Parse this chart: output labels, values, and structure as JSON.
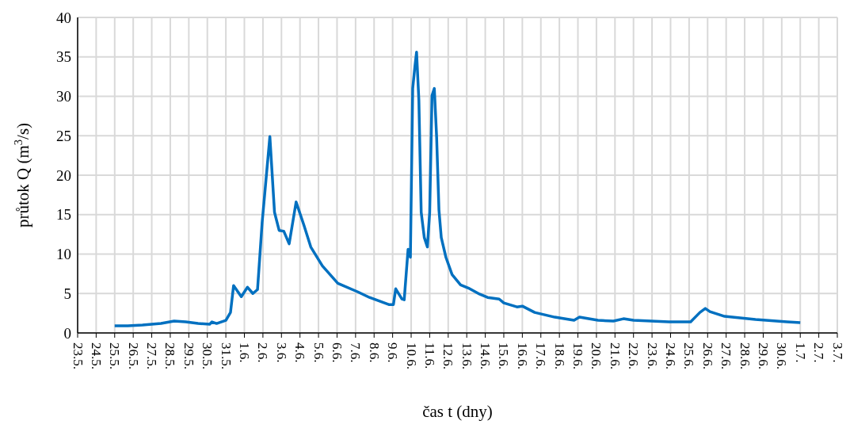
{
  "chart_data": {
    "type": "line",
    "xlabel": "čas t (dny)",
    "ylabel": "průtok Q (m$^{3}$/s)",
    "x": [
      "--05-25T00:00",
      "--05-25T17:00",
      "--05-26T12:00",
      "--05-27T12:00",
      "--05-28T05:00",
      "--05-28T20:00",
      "--05-29T12:00",
      "--05-30T03:00",
      "--05-30T06:00",
      "--05-30T12:00",
      "--05-31T00:00",
      "--05-31T06:00",
      "--05-31T10:00",
      "--05-31T20:00",
      "--06-01T04:00",
      "--06-01T11:00",
      "--06-01T17:00",
      "--06-01T23:00",
      "--06-02T09:00",
      "--06-02T15:00",
      "--06-02T21:00",
      "--06-03T03:00",
      "--06-03T10:00",
      "--06-03T19:00",
      "--06-04T05:00",
      "--06-04T14:00",
      "--06-05T05:00",
      "--06-06T01:00",
      "--06-07T03:00",
      "--06-07T18:00",
      "--06-08T19:00",
      "--06-09T01:00",
      "--06-09T04:00",
      "--06-09T12:00",
      "--06-09T15:00",
      "--06-09T20:00",
      "--06-09T23:00",
      "--06-10T02:00",
      "--06-10T05:00",
      "--06-10T07:00",
      "--06-10T10:00",
      "--06-10T13:00",
      "--06-10T17:00",
      "--06-10T21:00",
      "--06-11T00:00",
      "--06-11T03:00",
      "--06-11T06:00",
      "--06-11T09:00",
      "--06-11T12:00",
      "--06-11T15:00",
      "--06-11T21:00",
      "--06-12T05:00",
      "--06-12T16:00",
      "--06-13T02:00",
      "--06-13T17:00",
      "--06-14T03:00",
      "--06-14T18:00",
      "--06-15T00:00",
      "--06-15T17:00",
      "--06-16T00:00",
      "--06-16T16:00",
      "--06-17T18:00",
      "--06-18T19:00",
      "--06-19T02:00",
      "--06-20T02:00",
      "--06-20T22:00",
      "--06-21T11:00",
      "--06-22T00:00",
      "--06-23T22:00",
      "--06-25T02:00",
      "--06-25T14:00",
      "--06-25T21:00",
      "--06-26T03:00",
      "--06-26T22:00",
      "--06-28T14:00",
      "--06-30T07:00",
      "--07-01T00:00"
    ],
    "series": [
      {
        "color": "#0070c0",
        "values": [
          0.9,
          0.9,
          1.0,
          1.2,
          1.5,
          1.4,
          1.2,
          1.1,
          1.4,
          1.2,
          1.6,
          2.6,
          6.0,
          4.6,
          5.8,
          5.0,
          5.5,
          14,
          24.9,
          15.3,
          13.0,
          12.9,
          11.3,
          16.6,
          13.7,
          10.9,
          8.5,
          6.3,
          5.2,
          4.5,
          3.6,
          3.6,
          5.6,
          4.3,
          4.2,
          10.6,
          9.6,
          31,
          33.9,
          35.6,
          29.5,
          15.3,
          12.1,
          10.9,
          15.3,
          30.1,
          31.0,
          24.8,
          15.6,
          12.1,
          9.6,
          7.4,
          6.1,
          5.7,
          4.9,
          4.5,
          4.3,
          3.8,
          3.3,
          3.4,
          2.6,
          2.0,
          1.6,
          2.0,
          1.6,
          1.5,
          1.8,
          1.6,
          1.4,
          1.4,
          2.6,
          3.1,
          2.7,
          2.1,
          1.7,
          1.4,
          1.3
        ]
      }
    ],
    "xlim": [
      "--05-23",
      "--07-03"
    ],
    "xticks": [
      {
        "value": "--05-23",
        "label": "23.5."
      },
      {
        "value": "--05-24",
        "label": "24.5."
      },
      {
        "value": "--05-25",
        "label": "25.5."
      },
      {
        "value": "--05-26",
        "label": "26.5."
      },
      {
        "value": "--05-27",
        "label": "27.5."
      },
      {
        "value": "--05-28",
        "label": "28.5."
      },
      {
        "value": "--05-29",
        "label": "29.5."
      },
      {
        "value": "--05-30",
        "label": "30.5."
      },
      {
        "value": "--05-31",
        "label": "31.5."
      },
      {
        "value": "--06-01",
        "label": "1.6."
      },
      {
        "value": "--06-02",
        "label": "2.6."
      },
      {
        "value": "--06-03",
        "label": "3.6."
      },
      {
        "value": "--06-04",
        "label": "4.6."
      },
      {
        "value": "--06-05",
        "label": "5.6."
      },
      {
        "value": "--06-06",
        "label": "6.6."
      },
      {
        "value": "--06-07",
        "label": "7.6."
      },
      {
        "value": "--06-08",
        "label": "8.6."
      },
      {
        "value": "--06-09",
        "label": "9.6."
      },
      {
        "value": "--06-10",
        "label": "10.6."
      },
      {
        "value": "--06-11",
        "label": "11.6."
      },
      {
        "value": "--06-12",
        "label": "12.6."
      },
      {
        "value": "--06-13",
        "label": "13.6."
      },
      {
        "value": "--06-14",
        "label": "14.6."
      },
      {
        "value": "--06-15",
        "label": "15.6."
      },
      {
        "value": "--06-16",
        "label": "16.6."
      },
      {
        "value": "--06-17",
        "label": "17.6."
      },
      {
        "value": "--06-18",
        "label": "18.6."
      },
      {
        "value": "--06-19",
        "label": "19.6."
      },
      {
        "value": "--06-20",
        "label": "20.6."
      },
      {
        "value": "--06-21",
        "label": "21.6."
      },
      {
        "value": "--06-22",
        "label": "22.6."
      },
      {
        "value": "--06-23",
        "label": "23.6."
      },
      {
        "value": "--06-24",
        "label": "24.6."
      },
      {
        "value": "--06-25",
        "label": "25.6."
      },
      {
        "value": "--06-26",
        "label": "26.6."
      },
      {
        "value": "--06-27",
        "label": "27.6."
      },
      {
        "value": "--06-28",
        "label": "28.6."
      },
      {
        "value": "--06-29",
        "label": "29.6."
      },
      {
        "value": "--06-30",
        "label": "30.6."
      },
      {
        "value": "--07-01",
        "label": "1.7."
      },
      {
        "value": "--07-02",
        "label": "2.7."
      },
      {
        "value": "--07-03",
        "label": "3.7."
      }
    ],
    "ylim": [
      0,
      40
    ],
    "yticks": [
      0,
      5,
      10,
      15,
      20,
      25,
      30,
      35,
      40
    ],
    "grid": true,
    "marker": "none",
    "line_style": "solid",
    "legend": false
  }
}
